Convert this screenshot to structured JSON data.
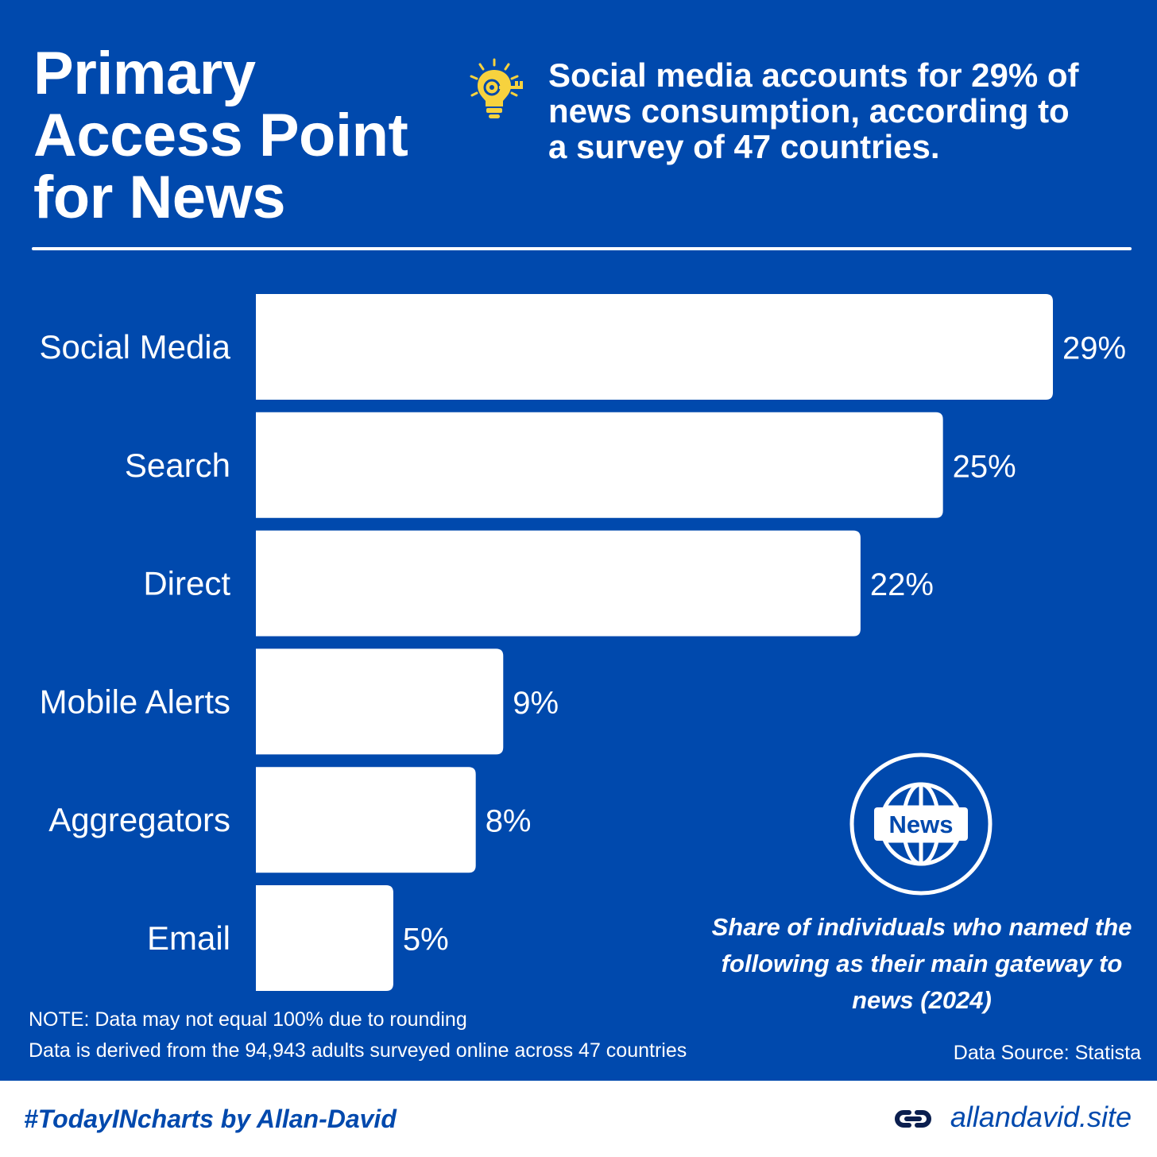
{
  "title_lines": [
    "Primary",
    "Access Point",
    "for News"
  ],
  "headline_lines": [
    "Social media accounts for 29% of",
    "news consumption, according to",
    "a survey of 47 countries."
  ],
  "news_badge_text": "News",
  "chart_data": {
    "type": "bar",
    "orientation": "horizontal",
    "title": "Primary Access Point for News",
    "subtitle": "Share of individuals who named the following as their main gateway to news (2024)",
    "categories": [
      "Social Media",
      "Search",
      "Direct",
      "Mobile Alerts",
      "Aggregators",
      "Email"
    ],
    "values": [
      29,
      25,
      22,
      9,
      8,
      5
    ],
    "value_labels": [
      "29%",
      "25%",
      "22%",
      "9%",
      "8%",
      "5%"
    ],
    "unit": "%",
    "xlim": [
      0,
      29
    ],
    "xlabel": "",
    "ylabel": "",
    "grid": false,
    "bar_color": "#ffffff",
    "background_color": "#0049ad"
  },
  "notes": [
    "NOTE: Data may not equal 100% due to rounding",
    "Data is derived from the 94,943 adults surveyed online across 47 countries"
  ],
  "source": "Data Source: Statista",
  "footer": {
    "hashtag": "#TodayINcharts by Allan-David",
    "site": "allandavid.site"
  },
  "colors": {
    "background": "#0049ad",
    "text": "#ffffff",
    "bulb": "#f7d23e",
    "footer_text": "#0049ad"
  }
}
